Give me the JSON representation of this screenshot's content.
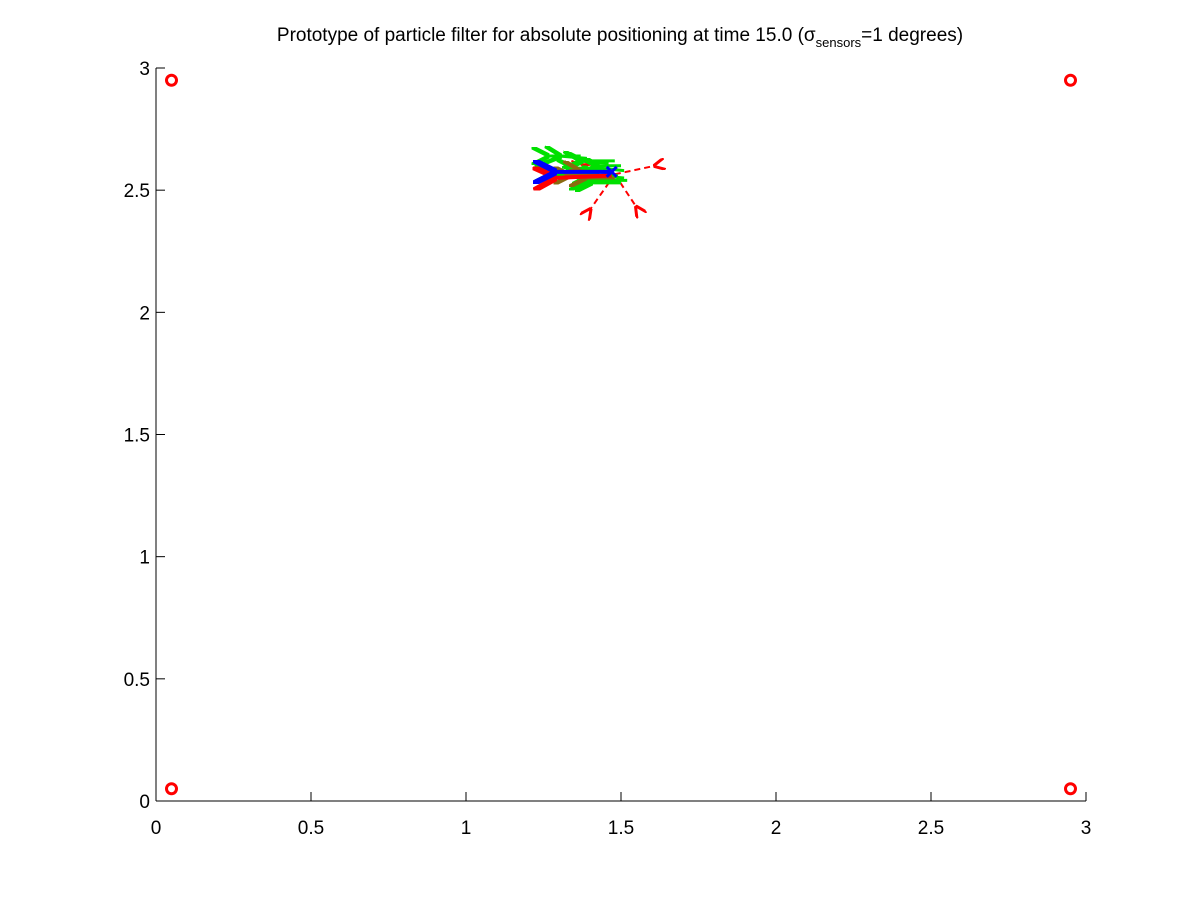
{
  "chart_data": {
    "type": "scatter",
    "title": {
      "prefix": "Prototype of particle filter for absolute positioning at time 15.0 (",
      "sigma": "σ",
      "subscript": "sensors",
      "suffix": "=1 degrees)"
    },
    "xlabel": "",
    "ylabel": "",
    "xlim": [
      0,
      3
    ],
    "ylim": [
      0,
      3
    ],
    "x_ticks": [
      0,
      0.5,
      1,
      1.5,
      2,
      2.5,
      3
    ],
    "y_ticks": [
      0,
      0.5,
      1,
      1.5,
      2,
      2.5,
      3
    ],
    "x_tick_labels": [
      "0",
      "0.5",
      "1",
      "1.5",
      "2",
      "2.5",
      "3"
    ],
    "y_tick_labels": [
      "0",
      "0.5",
      "1",
      "1.5",
      "2",
      "2.5",
      "3"
    ],
    "grid": false,
    "colors": {
      "beacon": "#ff0000",
      "particles": "#00e000",
      "estimate": "#0000ff",
      "true_pose": "#ff0000",
      "sensor_rays": "#ff0000",
      "dark_particles": "#8a6a10"
    },
    "beacons": [
      {
        "x": 0.05,
        "y": 2.95
      },
      {
        "x": 2.95,
        "y": 2.95
      },
      {
        "x": 0.05,
        "y": 0.05
      },
      {
        "x": 2.95,
        "y": 0.05
      }
    ],
    "particles": [
      {
        "x": 1.37,
        "y": 2.64,
        "dx": -0.11,
        "dy": 0.0
      },
      {
        "x": 1.39,
        "y": 2.63,
        "dx": -0.09,
        "dy": 0.01
      },
      {
        "x": 1.48,
        "y": 2.62,
        "dx": -0.11,
        "dy": 0.0
      },
      {
        "x": 1.46,
        "y": 2.61,
        "dx": -0.1,
        "dy": 0.01
      },
      {
        "x": 1.5,
        "y": 2.6,
        "dx": -0.09,
        "dy": 0.0
      },
      {
        "x": 1.44,
        "y": 2.59,
        "dx": -0.1,
        "dy": 0.0
      },
      {
        "x": 1.51,
        "y": 2.58,
        "dx": -0.08,
        "dy": 0.01
      },
      {
        "x": 1.34,
        "y": 2.57,
        "dx": -0.07,
        "dy": 0.0
      },
      {
        "x": 1.49,
        "y": 2.56,
        "dx": -0.1,
        "dy": 0.0
      },
      {
        "x": 1.51,
        "y": 2.55,
        "dx": -0.09,
        "dy": 0.01
      },
      {
        "x": 1.52,
        "y": 2.54,
        "dx": -0.12,
        "dy": 0.0
      },
      {
        "x": 1.5,
        "y": 2.53,
        "dx": -0.1,
        "dy": 0.0
      },
      {
        "x": 1.46,
        "y": 2.535,
        "dx": -0.08,
        "dy": 0.0
      }
    ],
    "dark_particles": [
      {
        "x": 1.47,
        "y": 2.57,
        "dx": -0.11,
        "dy": 0.01
      },
      {
        "x": 1.45,
        "y": 2.56,
        "dx": -0.12,
        "dy": 0.0
      },
      {
        "x": 1.48,
        "y": 2.55,
        "dx": -0.1,
        "dy": 0.0
      }
    ],
    "estimate": {
      "x": 1.47,
      "y": 2.575,
      "dx": -0.19,
      "dy": 0.0
    },
    "true_pose": {
      "x": 1.47,
      "y": 2.56,
      "dx": -0.19,
      "dy": -0.01
    },
    "sensor_rays": [
      {
        "x1": 1.48,
        "y1": 2.565,
        "x2": 1.61,
        "y2": 2.6
      },
      {
        "x1": 1.48,
        "y1": 2.565,
        "x2": 1.4,
        "y2": 2.42
      },
      {
        "x1": 1.48,
        "y1": 2.565,
        "x2": 1.55,
        "y2": 2.43
      },
      {
        "x1": 1.34,
        "y1": 2.62,
        "x2": 1.38,
        "y2": 2.6
      }
    ]
  }
}
